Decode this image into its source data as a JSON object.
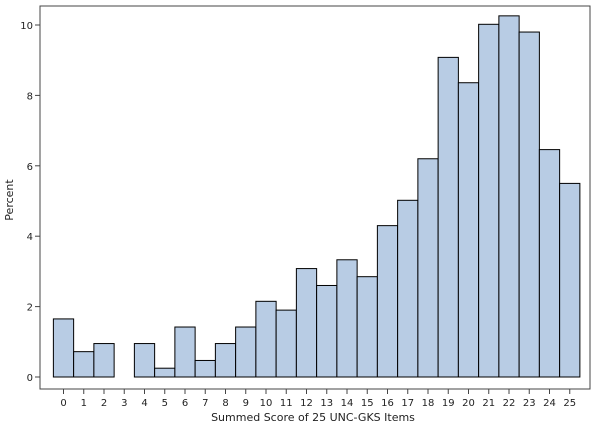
{
  "chart_data": {
    "type": "bar",
    "title": "",
    "xlabel": "Summed Score of 25 UNC-GKS Items",
    "ylabel": "Percent",
    "categories": [
      "0",
      "1",
      "2",
      "3",
      "4",
      "5",
      "6",
      "7",
      "8",
      "9",
      "10",
      "11",
      "12",
      "13",
      "14",
      "15",
      "16",
      "17",
      "18",
      "19",
      "20",
      "21",
      "22",
      "23",
      "24",
      "25"
    ],
    "values": [
      1.65,
      0.72,
      0.95,
      0.0,
      0.95,
      0.25,
      1.42,
      0.47,
      0.95,
      1.42,
      2.15,
      1.9,
      3.08,
      2.6,
      3.33,
      2.85,
      4.3,
      5.02,
      6.2,
      9.08,
      8.36,
      10.02,
      10.26,
      9.8,
      6.46,
      5.5
    ],
    "ylim": [
      0,
      10.6
    ],
    "yticks": [
      "0",
      "2",
      "4",
      "6",
      "8",
      "10"
    ],
    "grid": false,
    "legend": "none",
    "colors": {
      "bar_fill": "#b8cce4",
      "bar_stroke": "#000000",
      "frame": "#444444",
      "text": "#222222"
    }
  }
}
